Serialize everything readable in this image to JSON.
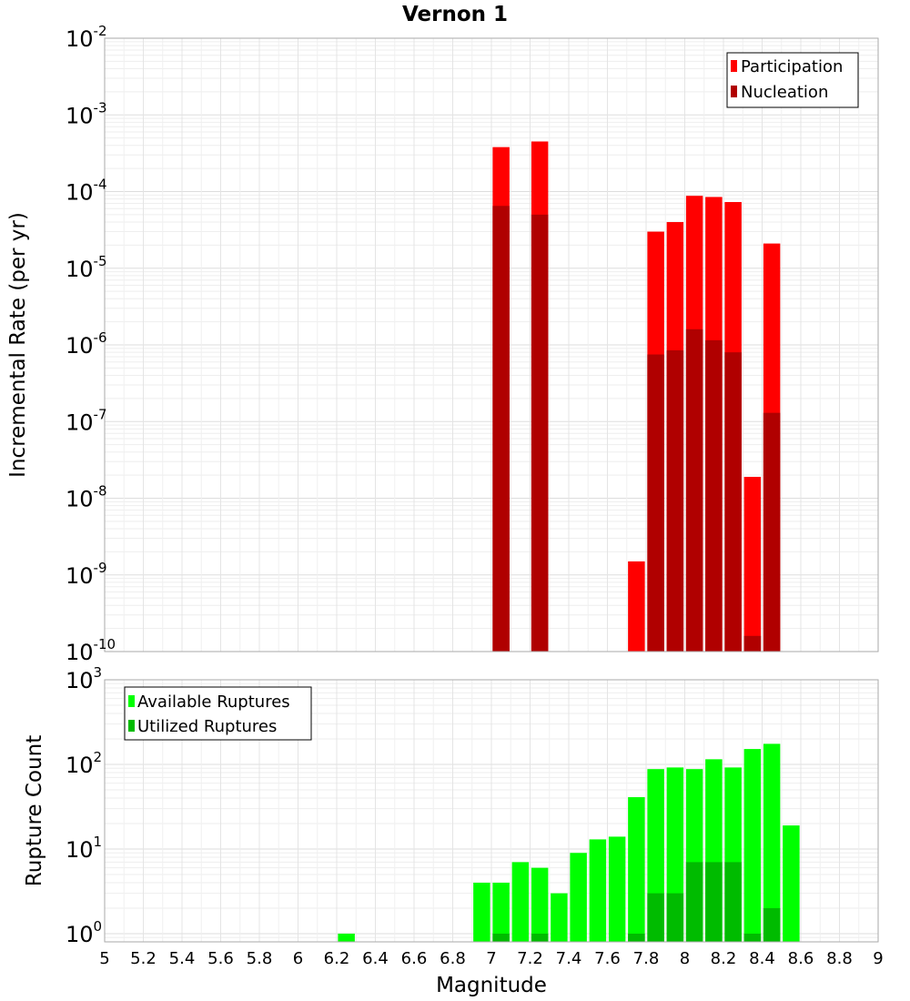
{
  "chart_data": [
    {
      "type": "bar",
      "title": "Vernon 1",
      "xlabel": "",
      "ylabel": "Incremental Rate (per yr)",
      "yscale": "log",
      "ylim": [
        1e-10,
        0.01
      ],
      "xlim": [
        5,
        9
      ],
      "legend_position": "top-right",
      "series": [
        {
          "name": "Participation",
          "color": "#ff0000",
          "x": [
            7.05,
            7.25,
            7.75,
            7.85,
            7.95,
            8.05,
            8.15,
            8.25,
            8.35,
            8.45
          ],
          "values": [
            0.00038,
            0.00045,
            1.5e-09,
            3e-05,
            4e-05,
            8.8e-05,
            8.5e-05,
            7.3e-05,
            1.9e-08,
            2.1e-05
          ]
        },
        {
          "name": "Nucleation",
          "color": "#b00000",
          "x": [
            7.05,
            7.25,
            7.85,
            7.95,
            8.05,
            8.15,
            8.25,
            8.35,
            8.45
          ],
          "values": [
            6.5e-05,
            5e-05,
            7.5e-07,
            8.5e-07,
            1.6e-06,
            1.15e-06,
            8e-07,
            1.6e-10,
            1.3e-07
          ]
        }
      ],
      "yticks": [
        {
          "base": "10",
          "exp": "-2"
        },
        {
          "base": "10",
          "exp": "-3"
        },
        {
          "base": "10",
          "exp": "-4"
        },
        {
          "base": "10",
          "exp": "-5"
        },
        {
          "base": "10",
          "exp": "-6"
        },
        {
          "base": "10",
          "exp": "-7"
        },
        {
          "base": "10",
          "exp": "-8"
        },
        {
          "base": "10",
          "exp": "-9"
        },
        {
          "base": "10",
          "exp": "-10"
        }
      ]
    },
    {
      "type": "bar",
      "title": "",
      "xlabel": "Magnitude",
      "ylabel": "Rupture Count",
      "yscale": "log",
      "ylim": [
        0.8,
        1000
      ],
      "xlim": [
        5,
        9
      ],
      "legend_position": "top-left",
      "series": [
        {
          "name": "Available Ruptures",
          "color": "#00ff00",
          "x": [
            6.25,
            6.95,
            7.05,
            7.15,
            7.25,
            7.35,
            7.45,
            7.55,
            7.65,
            7.75,
            7.85,
            7.95,
            8.05,
            8.15,
            8.25,
            8.35,
            8.45,
            8.55
          ],
          "values": [
            1,
            4,
            4,
            7,
            6,
            3,
            9,
            13,
            14,
            41,
            88,
            92,
            88,
            115,
            92,
            152,
            175,
            19
          ]
        },
        {
          "name": "Utilized Ruptures",
          "color": "#00bb00",
          "x": [
            7.05,
            7.25,
            7.75,
            7.85,
            7.95,
            8.05,
            8.15,
            8.25,
            8.35,
            8.45
          ],
          "values": [
            1,
            1,
            1,
            3,
            3,
            7,
            7,
            7,
            1,
            2
          ]
        }
      ],
      "yticks": [
        {
          "base": "10",
          "exp": "3"
        },
        {
          "base": "10",
          "exp": "2"
        },
        {
          "base": "10",
          "exp": "1"
        },
        {
          "base": "10",
          "exp": "0"
        }
      ],
      "xticks": [
        "5",
        "5.2",
        "5.4",
        "5.6",
        "5.8",
        "6",
        "6.2",
        "6.4",
        "6.6",
        "6.8",
        "7",
        "7.2",
        "7.4",
        "7.6",
        "7.8",
        "8",
        "8.2",
        "8.4",
        "8.6",
        "8.8",
        "9"
      ]
    }
  ]
}
